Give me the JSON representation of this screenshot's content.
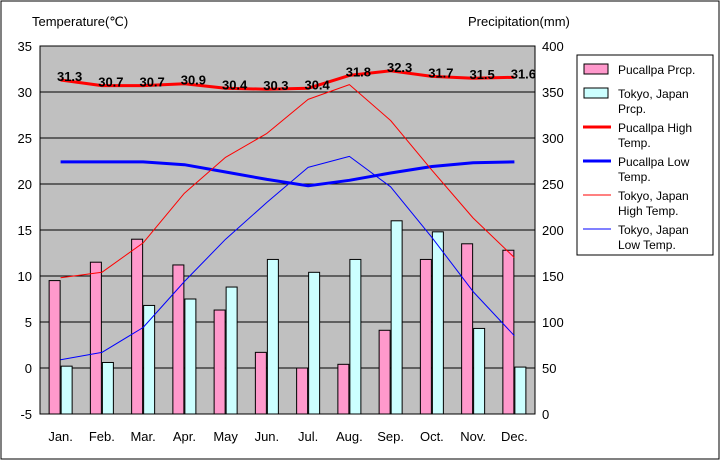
{
  "chart_data": {
    "type": "bar+line",
    "categories": [
      "Jan.",
      "Feb.",
      "Mar.",
      "Apr.",
      "May",
      "Jun.",
      "Jul.",
      "Aug.",
      "Sep.",
      "Oct.",
      "Nov.",
      "Dec."
    ],
    "left_axis": {
      "label": "Temperature(℃)",
      "min": -5,
      "max": 35,
      "step": 5
    },
    "right_axis": {
      "label": "Precipitation(mm)",
      "min": 0,
      "max": 400,
      "step": 50
    },
    "grid": true,
    "legend_position": "right",
    "bar_series": [
      {
        "name": "Pucallpa Prcp.",
        "color": "#ff99cc",
        "values": [
          145,
          165,
          190,
          162,
          113,
          67,
          50,
          54,
          91,
          168,
          185,
          178
        ]
      },
      {
        "name": "Tokyo, Japan Prcp.",
        "color": "#ccffff",
        "values": [
          52,
          56,
          118,
          125,
          138,
          168,
          154,
          168,
          210,
          198,
          93,
          51
        ]
      }
    ],
    "line_series": [
      {
        "name": "Pucallpa High Temp.",
        "color": "#ff0000",
        "width": 3,
        "values": [
          31.3,
          30.7,
          30.7,
          30.9,
          30.4,
          30.3,
          30.4,
          31.8,
          32.3,
          31.7,
          31.5,
          31.6
        ],
        "labels": [
          "31.3",
          "30.7",
          "30.7",
          "30.9",
          "30.4",
          "30.3",
          "30.4",
          "31.8",
          "32.3",
          "31.7",
          "31.5",
          "31.6"
        ]
      },
      {
        "name": "Pucallpa Low Temp.",
        "color": "#0000ff",
        "width": 3,
        "values": [
          22.4,
          22.4,
          22.4,
          22.1,
          21.3,
          20.5,
          19.8,
          20.4,
          21.2,
          21.9,
          22.3,
          22.4
        ]
      },
      {
        "name": "Tokyo, Japan High Temp.",
        "color": "#ff0000",
        "width": 1,
        "values": [
          9.8,
          10.4,
          13.6,
          19.0,
          22.9,
          25.5,
          29.2,
          30.8,
          26.9,
          21.5,
          16.3,
          12.0
        ]
      },
      {
        "name": "Tokyo, Japan Low Temp.",
        "color": "#0000ff",
        "width": 1,
        "values": [
          0.9,
          1.7,
          4.4,
          9.4,
          14.0,
          18.0,
          21.8,
          23.0,
          19.7,
          14.2,
          8.3,
          3.5
        ]
      }
    ]
  }
}
